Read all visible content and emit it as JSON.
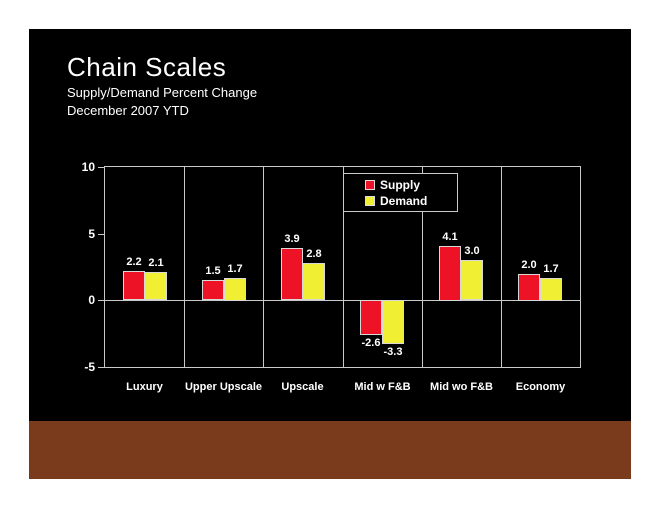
{
  "slide": {
    "title": "Chain Scales",
    "subtitle_line1": "Supply/Demand Percent Change",
    "subtitle_line2": "December 2007 YTD"
  },
  "chart_data": {
    "type": "bar",
    "title": "Chain Scales",
    "subtitle": "Supply/Demand Percent Change",
    "period": "December 2007 YTD",
    "categories": [
      "Luxury",
      "Upper Upscale",
      "Upscale",
      "Mid w F&B",
      "Mid wo F&B",
      "Economy"
    ],
    "series": [
      {
        "name": "Supply",
        "color": "#ED1226",
        "values": [
          2.2,
          1.5,
          3.9,
          -2.6,
          4.1,
          2.0
        ]
      },
      {
        "name": "Demand",
        "color": "#F1EF33",
        "values": [
          2.1,
          1.7,
          2.8,
          -3.3,
          3.0,
          1.7
        ]
      }
    ],
    "ylim": [
      -5,
      10
    ],
    "yticks": [
      10,
      5,
      0,
      -5
    ],
    "grid": "vertical category separators, horizontal zero line",
    "legend_position": "inside-top-center"
  },
  "colors": {
    "slide_background": "#000000",
    "page_background": "#FFFFFF",
    "footer_band": "#7A3B1D",
    "axis_line": "#C9C9C9",
    "text": "#FFFFFF",
    "supply_bar": "#ED1226",
    "demand_bar": "#F1EF33"
  }
}
